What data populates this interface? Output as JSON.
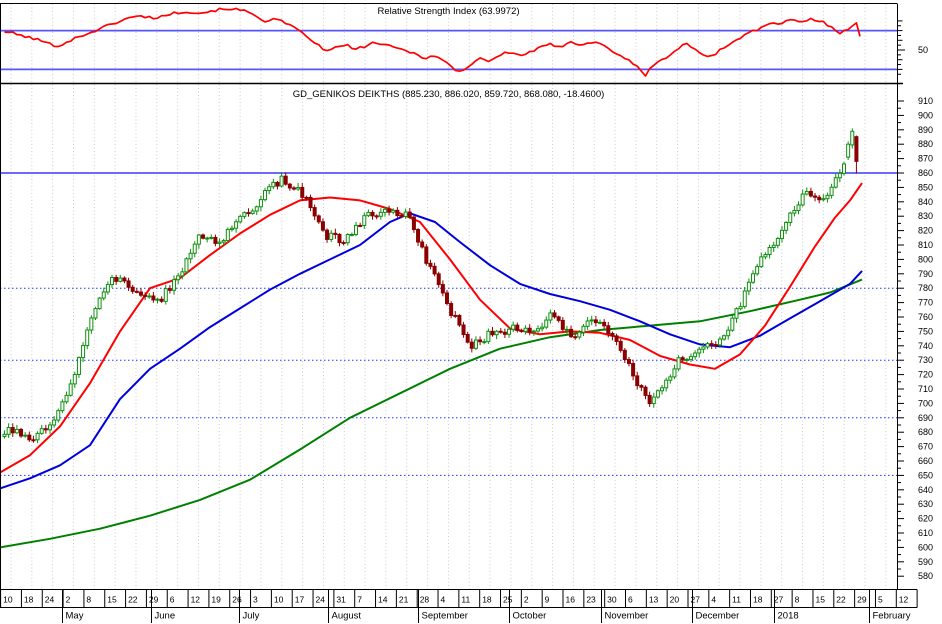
{
  "chart_data": [
    {
      "type": "line",
      "panel": "indicator",
      "title": "Relative Strength Index (63.9972)",
      "indicator_name": "Relative Strength Index",
      "last_value": 63.9972,
      "line_color": "#ff0000",
      "overbought_level": 70,
      "oversold_level": 30,
      "mid_level_label": "50",
      "level_line_color": "#5555ff",
      "ylim": [
        15,
        97
      ],
      "grid": true,
      "rsi_path": [
        [
          0,
          70
        ],
        [
          10,
          68
        ],
        [
          25,
          64
        ],
        [
          40,
          60
        ],
        [
          55,
          54
        ],
        [
          65,
          57
        ],
        [
          75,
          62
        ],
        [
          85,
          66
        ],
        [
          95,
          70
        ],
        [
          110,
          76
        ],
        [
          125,
          82
        ],
        [
          140,
          85
        ],
        [
          155,
          83
        ],
        [
          170,
          87
        ],
        [
          185,
          90
        ],
        [
          200,
          88
        ],
        [
          215,
          91
        ],
        [
          230,
          93
        ],
        [
          245,
          90
        ],
        [
          255,
          86
        ],
        [
          265,
          80
        ],
        [
          275,
          82
        ],
        [
          285,
          78
        ],
        [
          295,
          72
        ],
        [
          305,
          65
        ],
        [
          315,
          58
        ],
        [
          325,
          48
        ],
        [
          335,
          52
        ],
        [
          345,
          56
        ],
        [
          355,
          50
        ],
        [
          365,
          54
        ],
        [
          375,
          58
        ],
        [
          385,
          55
        ],
        [
          395,
          52
        ],
        [
          405,
          50
        ],
        [
          415,
          46
        ],
        [
          425,
          42
        ],
        [
          435,
          44
        ],
        [
          445,
          38
        ],
        [
          455,
          30
        ],
        [
          462,
          27
        ],
        [
          470,
          35
        ],
        [
          480,
          42
        ],
        [
          490,
          38
        ],
        [
          500,
          45
        ],
        [
          510,
          48
        ],
        [
          520,
          44
        ],
        [
          530,
          48
        ],
        [
          540,
          52
        ],
        [
          550,
          56
        ],
        [
          560,
          52
        ],
        [
          570,
          60
        ],
        [
          580,
          55
        ],
        [
          590,
          58
        ],
        [
          600,
          57
        ],
        [
          610,
          50
        ],
        [
          620,
          45
        ],
        [
          630,
          38
        ],
        [
          640,
          30
        ],
        [
          645,
          23
        ],
        [
          653,
          35
        ],
        [
          660,
          38
        ],
        [
          670,
          45
        ],
        [
          685,
          57
        ],
        [
          700,
          47
        ],
        [
          710,
          43
        ],
        [
          725,
          53
        ],
        [
          740,
          63
        ],
        [
          750,
          68
        ],
        [
          760,
          72
        ],
        [
          770,
          78
        ],
        [
          780,
          75
        ],
        [
          790,
          82
        ],
        [
          800,
          78
        ],
        [
          810,
          82
        ],
        [
          820,
          80
        ],
        [
          830,
          75
        ],
        [
          840,
          68
        ],
        [
          850,
          73
        ],
        [
          856,
          78
        ],
        [
          862,
          64
        ]
      ]
    },
    {
      "type": "candlestick",
      "panel": "price",
      "title": "GD_GENIKOS DEIKTHS (885.230, 886.020, 859.720, 868.080, -18.4600)",
      "symbol": "GD_GENIKOS DEIKTHS",
      "last_values": {
        "open": 885.23,
        "high": 886.02,
        "low": 859.72,
        "close": 868.08,
        "change": -18.46
      },
      "y_axis": {
        "min": 580,
        "max": 910,
        "step": 10,
        "minor_step": 5
      },
      "resistance_line_solid": 860,
      "support_lines_dotted": [
        780,
        730,
        690,
        650
      ],
      "weekly_close_path": [
        [
          4,
          680
        ],
        [
          11,
          681
        ],
        [
          32,
          674
        ],
        [
          53,
          686
        ],
        [
          73,
          718
        ],
        [
          94,
          765
        ],
        [
          115,
          788
        ],
        [
          136,
          778
        ],
        [
          157,
          770
        ],
        [
          178,
          786
        ],
        [
          198,
          818
        ],
        [
          219,
          812
        ],
        [
          240,
          828
        ],
        [
          261,
          842
        ],
        [
          282,
          857
        ],
        [
          303,
          845
        ],
        [
          323,
          818
        ],
        [
          344,
          812
        ],
        [
          365,
          830
        ],
        [
          386,
          832
        ],
        [
          407,
          833
        ],
        [
          427,
          798
        ],
        [
          448,
          768
        ],
        [
          469,
          740
        ],
        [
          490,
          748
        ],
        [
          511,
          752
        ],
        [
          532,
          748
        ],
        [
          553,
          762
        ],
        [
          573,
          745
        ],
        [
          594,
          760
        ],
        [
          615,
          742
        ],
        [
          636,
          716
        ],
        [
          650,
          700
        ],
        [
          657,
          705
        ],
        [
          677,
          728
        ],
        [
          698,
          738
        ],
        [
          719,
          742
        ],
        [
          740,
          768
        ],
        [
          761,
          800
        ],
        [
          782,
          820
        ],
        [
          803,
          845
        ],
        [
          824,
          843
        ],
        [
          844,
          865
        ],
        [
          852,
          882
        ],
        [
          856,
          890
        ],
        [
          860,
          868
        ]
      ],
      "overlays": [
        {
          "name": "ma-fast-red",
          "color": "#ff0000",
          "points": [
            [
              0,
              652
            ],
            [
              30,
              664
            ],
            [
              60,
              684
            ],
            [
              90,
              714
            ],
            [
              120,
              750
            ],
            [
              150,
              780
            ],
            [
              180,
              787
            ],
            [
              210,
              803
            ],
            [
              240,
              818
            ],
            [
              270,
              831
            ],
            [
              300,
              841
            ],
            [
              330,
              843
            ],
            [
              360,
              841
            ],
            [
              390,
              835
            ],
            [
              420,
              826
            ],
            [
              450,
              800
            ],
            [
              480,
              772
            ],
            [
              510,
              752
            ],
            [
              540,
              748
            ],
            [
              570,
              750
            ],
            [
              600,
              749
            ],
            [
              630,
              744
            ],
            [
              660,
              733
            ],
            [
              690,
              727
            ],
            [
              715,
              724
            ],
            [
              740,
              734
            ],
            [
              765,
              754
            ],
            [
              790,
              781
            ],
            [
              815,
              809
            ],
            [
              835,
              829
            ],
            [
              850,
              841
            ],
            [
              862,
              853
            ]
          ]
        },
        {
          "name": "ma-mid-blue",
          "color": "#0000dd",
          "points": [
            [
              0,
              641
            ],
            [
              30,
              648
            ],
            [
              60,
              657
            ],
            [
              90,
              671
            ],
            [
              120,
              703
            ],
            [
              150,
              724
            ],
            [
              180,
              738
            ],
            [
              210,
              753
            ],
            [
              240,
              766
            ],
            [
              270,
              779
            ],
            [
              300,
              790
            ],
            [
              330,
              800
            ],
            [
              360,
              810
            ],
            [
              390,
              826
            ],
            [
              410,
              832
            ],
            [
              435,
              826
            ],
            [
              460,
              812
            ],
            [
              490,
              796
            ],
            [
              520,
              783
            ],
            [
              550,
              776
            ],
            [
              580,
              771
            ],
            [
              610,
              765
            ],
            [
              640,
              757
            ],
            [
              670,
              748
            ],
            [
              700,
              741
            ],
            [
              730,
              739
            ],
            [
              760,
              747
            ],
            [
              790,
              759
            ],
            [
              820,
              771
            ],
            [
              850,
              783
            ],
            [
              862,
              792
            ]
          ]
        },
        {
          "name": "ma-slow-green",
          "color": "#008000",
          "points": [
            [
              0,
              600
            ],
            [
              50,
              606
            ],
            [
              100,
              613
            ],
            [
              150,
              622
            ],
            [
              200,
              633
            ],
            [
              250,
              647
            ],
            [
              300,
              668
            ],
            [
              350,
              690
            ],
            [
              400,
              707
            ],
            [
              450,
              724
            ],
            [
              500,
              738
            ],
            [
              550,
              746
            ],
            [
              600,
              751
            ],
            [
              650,
              754
            ],
            [
              700,
              757
            ],
            [
              750,
              764
            ],
            [
              800,
              772
            ],
            [
              830,
              777
            ],
            [
              862,
              786
            ]
          ]
        }
      ],
      "colors": {
        "up": "#0f8f0f",
        "up_fill": "#ffffff",
        "down": "#8b0000",
        "hline_solid": "#5555ff",
        "hline_dotted": "#2233ff",
        "grid": "#cccccc",
        "axis_text": "#000000",
        "border": "#000000"
      }
    }
  ],
  "x_axis": {
    "day_labels": [
      "10",
      "18",
      "24",
      "2",
      "8",
      "15",
      "22",
      "29",
      "6",
      "12",
      "19",
      "26",
      "3",
      "10",
      "17",
      "24",
      "31",
      "7",
      "14",
      "21",
      "28",
      "4",
      "11",
      "18",
      "25",
      "2",
      "9",
      "16",
      "23",
      "30",
      "6",
      "13",
      "20",
      "27",
      "4",
      "11",
      "18",
      "27",
      "8",
      "15",
      "22",
      "29",
      "5",
      "12"
    ],
    "month_labels": [
      {
        "label": "May",
        "tick": 3,
        "x": 64
      },
      {
        "label": "June",
        "tick": 8,
        "x": 153
      },
      {
        "label": "July",
        "tick": 12,
        "x": 241
      },
      {
        "label": "August",
        "tick": 17,
        "x": 330
      },
      {
        "label": "September",
        "tick": 21,
        "x": 420
      },
      {
        "label": "October",
        "tick": 25,
        "x": 511
      },
      {
        "label": "November",
        "tick": 30,
        "x": 603
      },
      {
        "label": "December",
        "tick": 34,
        "x": 694
      },
      {
        "label": "2018",
        "tick": 38,
        "x": 776
      },
      {
        "label": "February",
        "tick": 42,
        "x": 871
      }
    ]
  }
}
